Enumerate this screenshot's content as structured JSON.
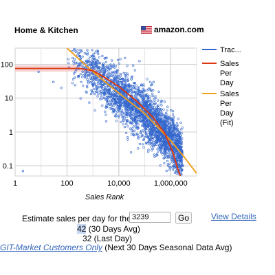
{
  "header": {
    "category": "Home & Kitchen",
    "marketplace": "amazon.com",
    "flag_icon": "us-flag-icon"
  },
  "colors": {
    "tracked": "#3366cc",
    "sales_per_day": "#dc3912",
    "fit": "#f0a020",
    "grid": "#cccccc",
    "band": "#f4cccc"
  },
  "chart_data": {
    "type": "scatter",
    "xlabel": "Sales Rank",
    "ylabel": "",
    "x_scale": "log",
    "y_scale": "log",
    "xlim": [
      1,
      10000000
    ],
    "ylim": [
      0.05,
      300
    ],
    "x_ticks": [
      1,
      100,
      10000,
      1000000
    ],
    "x_tick_labels": [
      "1",
      "100",
      "10,000",
      "1,000,000"
    ],
    "y_ticks": [
      0.1,
      1,
      10,
      100
    ],
    "y_tick_labels": [
      "0.1",
      "1",
      "10",
      "100"
    ],
    "grid": true,
    "legend_position": "right",
    "series": [
      {
        "name": "Trac...",
        "kind": "scatter",
        "point_count": 2600,
        "x": [
          2,
          8,
          30,
          60,
          120,
          200,
          400,
          1000,
          3000,
          10000,
          50000,
          200000,
          600000,
          1500000,
          3000000
        ],
        "y": [
          0.07,
          60,
          30,
          20,
          80,
          40,
          60,
          25,
          15,
          5,
          2,
          0.8,
          0.3,
          0.15,
          0.1
        ]
      },
      {
        "name": "Sales Per Day",
        "kind": "line",
        "x": [
          1,
          300,
          1000,
          3000,
          10000,
          50000,
          200000,
          600000,
          1200000,
          2000000,
          3000000
        ],
        "y": [
          75,
          75,
          65,
          40,
          22,
          8,
          2.8,
          0.9,
          0.25,
          0.07,
          0.03
        ]
      },
      {
        "name": "Sales Per Day (Fit)",
        "kind": "line",
        "x": [
          100,
          1000,
          10000,
          100000,
          1000000,
          3000000,
          10000000
        ],
        "y": [
          300,
          60,
          14,
          3.5,
          0.55,
          0.2,
          0.06
        ]
      }
    ]
  },
  "legend": {
    "items": [
      {
        "label_lines": [
          "Trac..."
        ]
      },
      {
        "label_lines": [
          "Sales",
          "Per",
          "Day"
        ]
      },
      {
        "label_lines": [
          "Sales",
          "Per",
          "Day",
          "(Fit)"
        ]
      }
    ]
  },
  "estimator": {
    "prompt": "Estimate sales per day for the rank",
    "rank_value": "3239",
    "go_label": "Go",
    "view_details_label": "View Details",
    "avg30_value": "42",
    "avg30_suffix": " (30 Days Avg)",
    "lastday_text": "32 (Last Day)",
    "seasonal_link": "GIT-Market Customers Only",
    "seasonal_suffix": " (Next 30 Days Seasonal Data Avg)"
  }
}
